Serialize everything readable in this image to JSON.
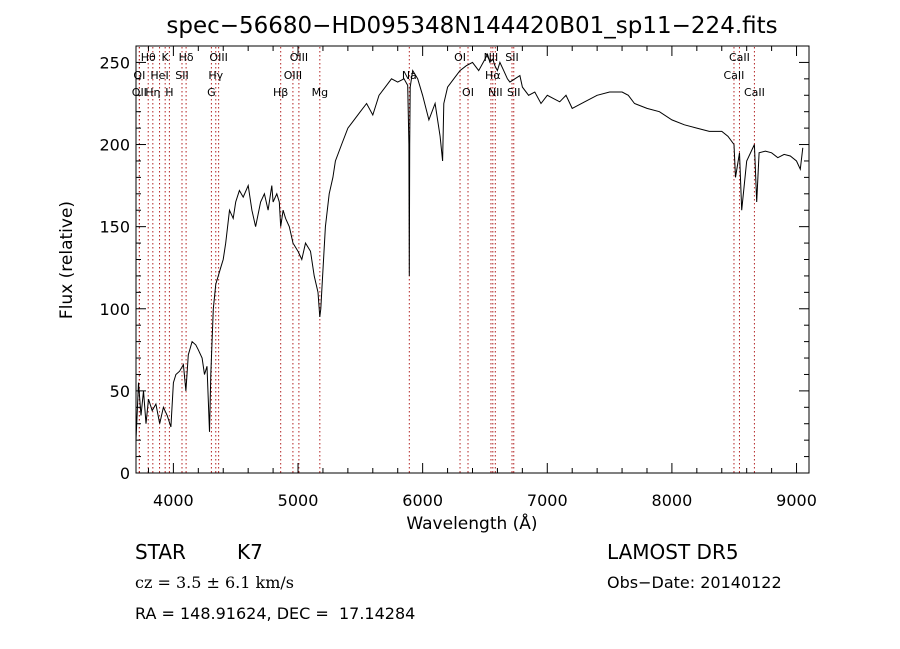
{
  "chart_data": {
    "type": "line",
    "title": "spec−56680−HD095348N144420B01_sp11−224.fits",
    "xlabel": "Wavelength (Å)",
    "ylabel": "Flux (relative)",
    "xlim": [
      3700,
      9100
    ],
    "ylim": [
      0,
      260
    ],
    "xticks": [
      4000,
      5000,
      6000,
      7000,
      8000,
      9000
    ],
    "yticks": [
      0,
      50,
      100,
      150,
      200,
      250
    ],
    "grid": false,
    "series": [
      {
        "x": [
          3700,
          3720,
          3740,
          3760,
          3780,
          3800,
          3830,
          3860,
          3890,
          3920,
          3950,
          3980,
          4000,
          4020,
          4050,
          4080,
          4100,
          4120,
          4150,
          4180,
          4200,
          4230,
          4250,
          4270,
          4290,
          4300,
          4320,
          4340,
          4360,
          4380,
          4400,
          4420,
          4450,
          4480,
          4500,
          4530,
          4560,
          4600,
          4630,
          4660,
          4700,
          4730,
          4760,
          4790,
          4800,
          4830,
          4850,
          4861,
          4880,
          4900,
          4930,
          4960,
          5000,
          5030,
          5060,
          5100,
          5130,
          5160,
          5175,
          5183,
          5190,
          5220,
          5250,
          5280,
          5300,
          5350,
          5400,
          5450,
          5500,
          5550,
          5600,
          5650,
          5700,
          5750,
          5800,
          5850,
          5880,
          5890,
          5893,
          5896,
          5900,
          5920,
          5960,
          6000,
          6050,
          6100,
          6140,
          6160,
          6170,
          6200,
          6250,
          6300,
          6350,
          6400,
          6450,
          6500,
          6520,
          6540,
          6563,
          6580,
          6600,
          6620,
          6650,
          6680,
          6700,
          6740,
          6780,
          6800,
          6850,
          6900,
          6950,
          7000,
          7050,
          7100,
          7150,
          7200,
          7300,
          7400,
          7500,
          7600,
          7650,
          7700,
          7800,
          7900,
          8000,
          8100,
          8200,
          8300,
          8400,
          8450,
          8498,
          8510,
          8542,
          8560,
          8600,
          8662,
          8680,
          8700,
          8750,
          8800,
          8850,
          8900,
          8950,
          9000,
          9030,
          9050
        ],
        "y": [
          20,
          55,
          35,
          50,
          30,
          45,
          38,
          42,
          30,
          40,
          35,
          28,
          55,
          60,
          62,
          66,
          50,
          72,
          80,
          78,
          75,
          70,
          60,
          65,
          25,
          60,
          100,
          115,
          120,
          125,
          130,
          140,
          160,
          155,
          165,
          172,
          168,
          175,
          160,
          150,
          165,
          170,
          160,
          175,
          165,
          170,
          165,
          150,
          160,
          155,
          150,
          140,
          135,
          130,
          140,
          135,
          120,
          110,
          95,
          100,
          110,
          150,
          170,
          180,
          190,
          200,
          210,
          215,
          220,
          225,
          218,
          230,
          235,
          240,
          238,
          240,
          236,
          200,
          120,
          200,
          235,
          245,
          240,
          230,
          215,
          225,
          205,
          190,
          225,
          235,
          240,
          245,
          248,
          250,
          245,
          252,
          255,
          250,
          252,
          248,
          245,
          250,
          245,
          240,
          238,
          240,
          242,
          235,
          230,
          232,
          225,
          230,
          228,
          226,
          230,
          222,
          226,
          230,
          232,
          232,
          230,
          225,
          222,
          220,
          215,
          212,
          210,
          208,
          208,
          205,
          200,
          180,
          195,
          160,
          190,
          200,
          165,
          195,
          196,
          195,
          192,
          194,
          193,
          190,
          185,
          198
        ]
      }
    ],
    "spectral_lines": [
      {
        "label": "Hθ",
        "wavelength": 3798,
        "row": 1
      },
      {
        "label": "K",
        "wavelength": 3934,
        "row": 1
      },
      {
        "label": "Hδ",
        "wavelength": 4102,
        "row": 1
      },
      {
        "label": "OIII",
        "wavelength": 4363,
        "row": 1
      },
      {
        "label": "OIII",
        "wavelength": 5007,
        "row": 1
      },
      {
        "label": "OI",
        "wavelength": 6300,
        "row": 1
      },
      {
        "label": "NII",
        "wavelength": 6548,
        "row": 1
      },
      {
        "label": "SII",
        "wavelength": 6717,
        "row": 1
      },
      {
        "label": "CaII",
        "wavelength": 8542,
        "row": 1
      },
      {
        "label": "OI",
        "wavelength": 3727,
        "row": 2
      },
      {
        "label": "HeI",
        "wavelength": 3889,
        "row": 2
      },
      {
        "label": "SII",
        "wavelength": 4069,
        "row": 2
      },
      {
        "label": "Hγ",
        "wavelength": 4340,
        "row": 2
      },
      {
        "label": "OIII",
        "wavelength": 4959,
        "row": 2
      },
      {
        "label": "Na",
        "wavelength": 5893,
        "row": 2
      },
      {
        "label": "Hα",
        "wavelength": 6563,
        "row": 2
      },
      {
        "label": "CaII",
        "wavelength": 8498,
        "row": 2
      },
      {
        "label": "OII",
        "wavelength": 3727,
        "row": 3
      },
      {
        "label": "Hη",
        "wavelength": 3835,
        "row": 3
      },
      {
        "label": "H",
        "wavelength": 3968,
        "row": 3
      },
      {
        "label": "G",
        "wavelength": 4305,
        "row": 3
      },
      {
        "label": "Hβ",
        "wavelength": 4861,
        "row": 3
      },
      {
        "label": "Mg",
        "wavelength": 5175,
        "row": 3
      },
      {
        "label": "OI",
        "wavelength": 6364,
        "row": 3
      },
      {
        "label": "NII",
        "wavelength": 6583,
        "row": 3
      },
      {
        "label": "SII",
        "wavelength": 6731,
        "row": 3
      },
      {
        "label": "CaII",
        "wavelength": 8662,
        "row": 3
      }
    ],
    "line_color": "#000000",
    "marker_color": "#b22222"
  },
  "info": {
    "class_label": "STAR",
    "subclass": "K7",
    "survey": "LAMOST DR5",
    "cz": "cz = 3.5 ± 6.1 km/s",
    "obs_date": "Obs−Date: 20140122",
    "coords": "RA = 148.91624, DEC =  17.14284"
  }
}
